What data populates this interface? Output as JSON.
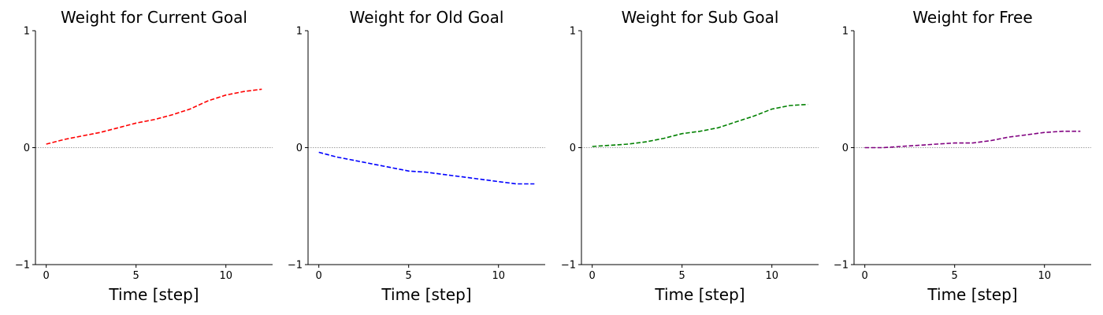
{
  "chart_data": [
    {
      "type": "line",
      "title": "Weight for Current Goal",
      "xlabel": "Time [step]",
      "ylabel": "",
      "xlim": [
        -0.6,
        12.6
      ],
      "ylim": [
        -1,
        1
      ],
      "xticks": [
        "0",
        "5",
        "10"
      ],
      "yticks": [
        "−1",
        "0",
        "1"
      ],
      "x": [
        0,
        1,
        2,
        3,
        4,
        5,
        6,
        7,
        8,
        9,
        10,
        11,
        12
      ],
      "series": [
        {
          "color": "#ff0000",
          "linestyle": "dashed",
          "values": [
            0.03,
            0.07,
            0.1,
            0.13,
            0.17,
            0.21,
            0.24,
            0.28,
            0.33,
            0.4,
            0.45,
            0.48,
            0.5
          ]
        }
      ],
      "reference_line": 0,
      "grid": false
    },
    {
      "type": "line",
      "title": "Weight for Old Goal",
      "xlabel": "Time [step]",
      "ylabel": "",
      "xlim": [
        -0.6,
        12.6
      ],
      "ylim": [
        -1,
        1
      ],
      "xticks": [
        "0",
        "5",
        "10"
      ],
      "yticks": [
        "−1",
        "0",
        "1"
      ],
      "x": [
        0,
        1,
        2,
        3,
        4,
        5,
        6,
        7,
        8,
        9,
        10,
        11,
        12
      ],
      "series": [
        {
          "color": "#0000ff",
          "linestyle": "dashed",
          "values": [
            -0.04,
            -0.08,
            -0.11,
            -0.14,
            -0.17,
            -0.2,
            -0.21,
            -0.23,
            -0.25,
            -0.27,
            -0.29,
            -0.31,
            -0.31
          ]
        }
      ],
      "reference_line": 0,
      "grid": false
    },
    {
      "type": "line",
      "title": "Weight for Sub Goal",
      "xlabel": "Time [step]",
      "ylabel": "",
      "xlim": [
        -0.6,
        12.6
      ],
      "ylim": [
        -1,
        1
      ],
      "xticks": [
        "0",
        "5",
        "10"
      ],
      "yticks": [
        "−1",
        "0",
        "1"
      ],
      "x": [
        0,
        1,
        2,
        3,
        4,
        5,
        6,
        7,
        8,
        9,
        10,
        11,
        12
      ],
      "series": [
        {
          "color": "#008000",
          "linestyle": "dashed",
          "values": [
            0.01,
            0.02,
            0.03,
            0.05,
            0.08,
            0.12,
            0.14,
            0.17,
            0.22,
            0.27,
            0.33,
            0.36,
            0.37
          ]
        }
      ],
      "reference_line": 0,
      "grid": false
    },
    {
      "type": "line",
      "title": "Weight for Free",
      "xlabel": "Time [step]",
      "ylabel": "",
      "xlim": [
        -0.6,
        12.6
      ],
      "ylim": [
        -1,
        1
      ],
      "xticks": [
        "0",
        "5",
        "10"
      ],
      "yticks": [
        "−1",
        "0",
        "1"
      ],
      "x": [
        0,
        1,
        2,
        3,
        4,
        5,
        6,
        7,
        8,
        9,
        10,
        11,
        12
      ],
      "series": [
        {
          "color": "#800080",
          "linestyle": "dashed",
          "values": [
            0.0,
            0.0,
            0.01,
            0.02,
            0.03,
            0.04,
            0.04,
            0.06,
            0.09,
            0.11,
            0.13,
            0.14,
            0.14
          ]
        }
      ],
      "reference_line": 0,
      "grid": false
    }
  ]
}
